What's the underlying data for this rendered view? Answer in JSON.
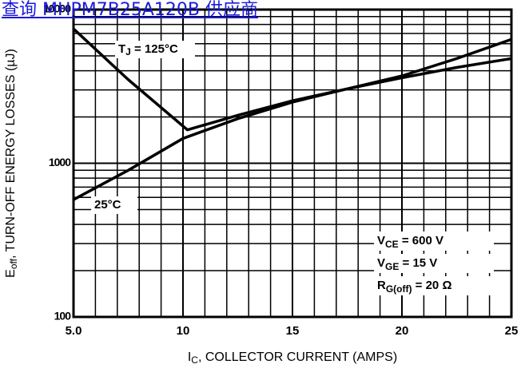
{
  "header_link": "查询 MHPM7B25A120B 供应商",
  "chart_data": {
    "type": "line",
    "x_label": [
      "I",
      "C",
      ", COLLECTOR CURRENT (AMPS)"
    ],
    "y_label": [
      "E",
      "off",
      ", TURN-OFF ENERGY LOSSES (µJ)"
    ],
    "xlim": [
      5,
      25
    ],
    "xticks": [
      {
        "value": 5,
        "label": "5.0"
      },
      10,
      15,
      20,
      25
    ],
    "ylim": [
      100,
      10000
    ],
    "yticks": [
      100,
      1000,
      10000
    ],
    "yscale": "log",
    "grid": true,
    "series": [
      {
        "name": [
          "T",
          "J",
          " = 125°C"
        ],
        "color": "#000000",
        "x": [
          5,
          7.5,
          10.2,
          12.5,
          15,
          17.5,
          20,
          22.5,
          25
        ],
        "values": [
          7500,
          3500,
          1650,
          2050,
          2550,
          3050,
          3600,
          4200,
          4800
        ]
      },
      {
        "name": [
          "25°C"
        ],
        "color": "#000000",
        "x": [
          5,
          7.5,
          10,
          12.5,
          15,
          17.5,
          20,
          22.5,
          25
        ],
        "values": [
          580,
          900,
          1450,
          1950,
          2500,
          3050,
          3700,
          4800,
          6400
        ]
      }
    ],
    "annotations": [
      [
        "V",
        "CE",
        " = 600 V"
      ],
      [
        "V",
        "GE",
        " = 15 V"
      ],
      [
        "R",
        "G(off)",
        " = 20 Ω"
      ]
    ]
  }
}
